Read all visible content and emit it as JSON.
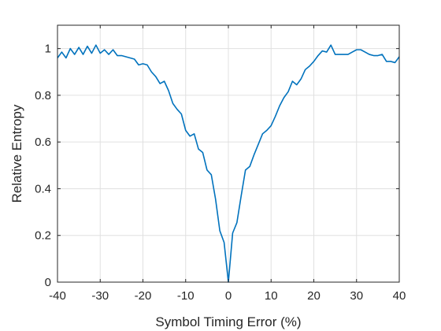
{
  "chart_data": {
    "type": "line",
    "xlabel": "Symbol Timing Error (%)",
    "ylabel": "Relative Entropy",
    "xlim": [
      -40,
      40
    ],
    "ylim": [
      0,
      1.1
    ],
    "grid": true,
    "x_ticks": [
      -40,
      -30,
      -20,
      -10,
      0,
      10,
      20,
      30,
      40
    ],
    "y_ticks": [
      0,
      0.2,
      0.4,
      0.6,
      0.8,
      1
    ],
    "colors": {
      "line": "#0072BD",
      "axes": "#262626",
      "grid": "#e0e0e0"
    },
    "series": [
      {
        "x": [
          -40,
          -39,
          -38,
          -37,
          -36,
          -35,
          -34,
          -33,
          -32,
          -31,
          -30,
          -29,
          -28,
          -27,
          -26,
          -25,
          -24,
          -23,
          -22,
          -21,
          -20,
          -19,
          -18,
          -17,
          -16,
          -15,
          -14,
          -13,
          -12,
          -11,
          -10,
          -9,
          -8,
          -7,
          -6,
          -5,
          -4,
          -3,
          -2,
          -1,
          0,
          1,
          2,
          3,
          4,
          5,
          6,
          7,
          8,
          9,
          10,
          11,
          12,
          13,
          14,
          15,
          16,
          17,
          18,
          19,
          20,
          21,
          22,
          23,
          24,
          25,
          26,
          27,
          28,
          29,
          30,
          31,
          32,
          33,
          34,
          35,
          36,
          37,
          38,
          39,
          40
        ],
        "y": [
          0.96,
          0.985,
          0.96,
          1.0,
          0.975,
          1.005,
          0.975,
          1.01,
          0.98,
          1.015,
          0.98,
          0.995,
          0.975,
          0.995,
          0.97,
          0.97,
          0.965,
          0.96,
          0.955,
          0.93,
          0.935,
          0.93,
          0.9,
          0.88,
          0.85,
          0.86,
          0.82,
          0.765,
          0.74,
          0.72,
          0.65,
          0.625,
          0.635,
          0.57,
          0.555,
          0.48,
          0.46,
          0.355,
          0.22,
          0.17,
          0.0,
          0.21,
          0.255,
          0.37,
          0.48,
          0.495,
          0.545,
          0.59,
          0.635,
          0.65,
          0.67,
          0.71,
          0.755,
          0.79,
          0.815,
          0.86,
          0.845,
          0.87,
          0.91,
          0.925,
          0.945,
          0.97,
          0.99,
          0.985,
          1.015,
          0.975,
          0.975,
          0.975,
          0.975,
          0.985,
          0.995,
          0.995,
          0.985,
          0.975,
          0.97,
          0.97,
          0.975,
          0.945,
          0.945,
          0.94,
          0.965
        ]
      }
    ]
  }
}
